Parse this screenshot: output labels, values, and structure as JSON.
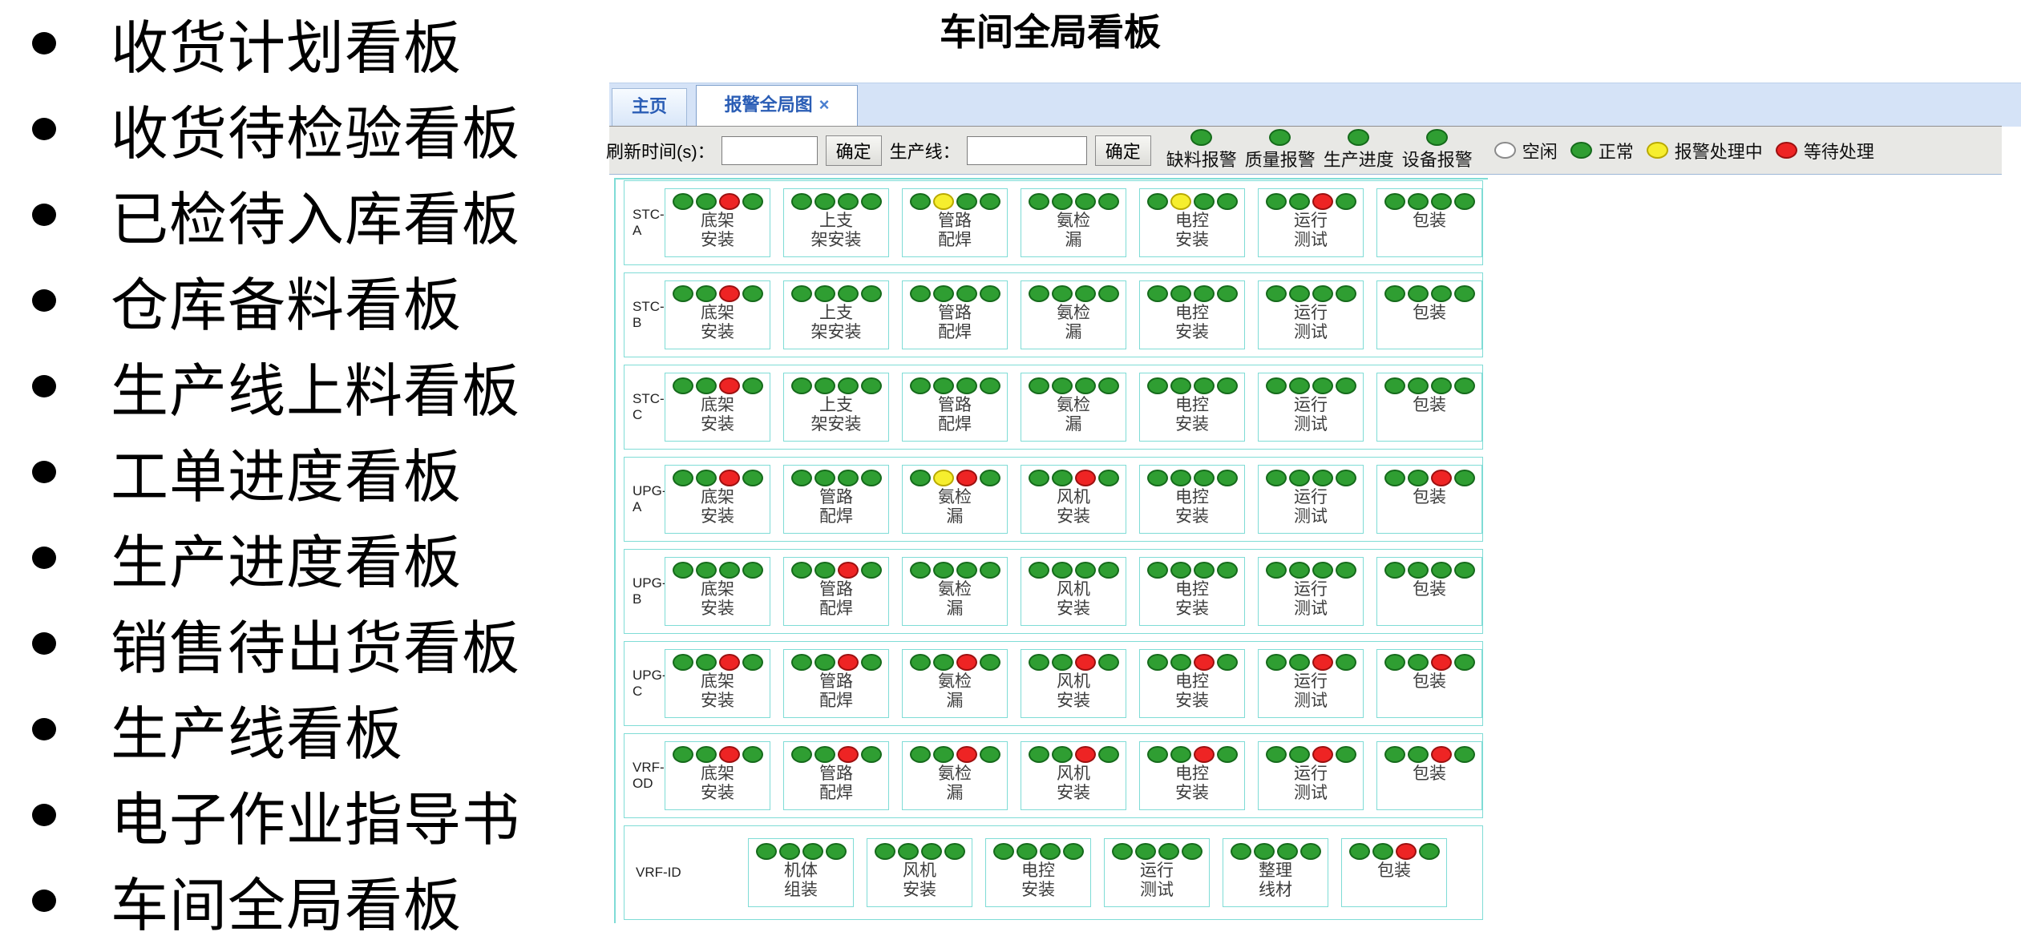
{
  "bullet_list": {
    "items": [
      "收货计划看板",
      "收货待检验看板",
      "已检待入库看板",
      "仓库备料看板",
      "生产线上料看板",
      "工单进度看板",
      "生产进度看板",
      "销售待出货看板",
      "生产线看板",
      "电子作业指导书",
      "车间全局看板"
    ]
  },
  "title": "车间全局看板",
  "tab_bar": {
    "tabs": [
      {
        "label": "主页",
        "active": false,
        "closable": false
      },
      {
        "label": "报警全局图",
        "active": true,
        "closable": true
      }
    ],
    "close_glyph": "×"
  },
  "toolbar": {
    "refresh_label": "刷新时间(s)：",
    "refresh_input_value": "",
    "refresh_confirm_label": "确定",
    "line_label": "生产线：",
    "line_input_value": "",
    "line_confirm_label": "确定",
    "alarm_type_legend": [
      {
        "label": "缺料报警",
        "dot": "normal"
      },
      {
        "label": "质量报警",
        "dot": "normal"
      },
      {
        "label": "生产进度",
        "dot": "normal"
      },
      {
        "label": "设备报警",
        "dot": "normal"
      }
    ],
    "status_legend": [
      {
        "label": "空闲",
        "status": "idle"
      },
      {
        "label": "正常",
        "status": "normal"
      },
      {
        "label": "报警处理中",
        "status": "processing"
      },
      {
        "label": "等待处理",
        "status": "waiting"
      }
    ]
  },
  "status_colors": {
    "idle": {
      "fill": "#ffffff",
      "stroke": "#8a8a8a"
    },
    "normal": {
      "fill": "#2f9e32",
      "stroke": "#156a1b"
    },
    "processing": {
      "fill": "#f6ee2e",
      "stroke": "#b9a900"
    },
    "waiting": {
      "fill": "#ee2424",
      "stroke": "#9c1010"
    }
  },
  "accent_colors": {
    "box_border": "#7fdcd6",
    "tab_text": "#2a5db5",
    "tabbar_bg": "#d5e3f7",
    "toolbar_bg": "#e8e8e5"
  },
  "board": {
    "rows": [
      {
        "label_lines": [
          "STC-",
          "A"
        ],
        "wide_label": false,
        "stations": [
          {
            "name": [
              "底架",
              "安装"
            ],
            "dots": [
              "normal",
              "normal",
              "waiting",
              "normal"
            ]
          },
          {
            "name": [
              "上支",
              "架安装"
            ],
            "dots": [
              "normal",
              "normal",
              "normal",
              "normal"
            ]
          },
          {
            "name": [
              "管路",
              "配焊"
            ],
            "dots": [
              "normal",
              "processing",
              "normal",
              "normal"
            ]
          },
          {
            "name": [
              "氨检",
              "漏"
            ],
            "dots": [
              "normal",
              "normal",
              "normal",
              "normal"
            ]
          },
          {
            "name": [
              "电控",
              "安装"
            ],
            "dots": [
              "normal",
              "processing",
              "normal",
              "normal"
            ]
          },
          {
            "name": [
              "运行",
              "测试"
            ],
            "dots": [
              "normal",
              "normal",
              "waiting",
              "normal"
            ]
          },
          {
            "name": [
              "包装"
            ],
            "dots": [
              "normal",
              "normal",
              "normal",
              "normal"
            ]
          }
        ]
      },
      {
        "label_lines": [
          "STC-",
          "B"
        ],
        "wide_label": false,
        "stations": [
          {
            "name": [
              "底架",
              "安装"
            ],
            "dots": [
              "normal",
              "normal",
              "waiting",
              "normal"
            ]
          },
          {
            "name": [
              "上支",
              "架安装"
            ],
            "dots": [
              "normal",
              "normal",
              "normal",
              "normal"
            ]
          },
          {
            "name": [
              "管路",
              "配焊"
            ],
            "dots": [
              "normal",
              "normal",
              "normal",
              "normal"
            ]
          },
          {
            "name": [
              "氨检",
              "漏"
            ],
            "dots": [
              "normal",
              "normal",
              "normal",
              "normal"
            ]
          },
          {
            "name": [
              "电控",
              "安装"
            ],
            "dots": [
              "normal",
              "normal",
              "normal",
              "normal"
            ]
          },
          {
            "name": [
              "运行",
              "测试"
            ],
            "dots": [
              "normal",
              "normal",
              "normal",
              "normal"
            ]
          },
          {
            "name": [
              "包装"
            ],
            "dots": [
              "normal",
              "normal",
              "normal",
              "normal"
            ]
          }
        ]
      },
      {
        "label_lines": [
          "STC-",
          "C"
        ],
        "wide_label": false,
        "stations": [
          {
            "name": [
              "底架",
              "安装"
            ],
            "dots": [
              "normal",
              "normal",
              "waiting",
              "normal"
            ]
          },
          {
            "name": [
              "上支",
              "架安装"
            ],
            "dots": [
              "normal",
              "normal",
              "normal",
              "normal"
            ]
          },
          {
            "name": [
              "管路",
              "配焊"
            ],
            "dots": [
              "normal",
              "normal",
              "normal",
              "normal"
            ]
          },
          {
            "name": [
              "氨检",
              "漏"
            ],
            "dots": [
              "normal",
              "normal",
              "normal",
              "normal"
            ]
          },
          {
            "name": [
              "电控",
              "安装"
            ],
            "dots": [
              "normal",
              "normal",
              "normal",
              "normal"
            ]
          },
          {
            "name": [
              "运行",
              "测试"
            ],
            "dots": [
              "normal",
              "normal",
              "normal",
              "normal"
            ]
          },
          {
            "name": [
              "包装"
            ],
            "dots": [
              "normal",
              "normal",
              "normal",
              "normal"
            ]
          }
        ]
      },
      {
        "label_lines": [
          "UPG-",
          "A"
        ],
        "wide_label": false,
        "stations": [
          {
            "name": [
              "底架",
              "安装"
            ],
            "dots": [
              "normal",
              "normal",
              "waiting",
              "normal"
            ]
          },
          {
            "name": [
              "管路",
              "配焊"
            ],
            "dots": [
              "normal",
              "normal",
              "normal",
              "normal"
            ]
          },
          {
            "name": [
              "氨检",
              "漏"
            ],
            "dots": [
              "normal",
              "processing",
              "waiting",
              "normal"
            ]
          },
          {
            "name": [
              "风机",
              "安装"
            ],
            "dots": [
              "normal",
              "normal",
              "waiting",
              "normal"
            ]
          },
          {
            "name": [
              "电控",
              "安装"
            ],
            "dots": [
              "normal",
              "normal",
              "normal",
              "normal"
            ]
          },
          {
            "name": [
              "运行",
              "测试"
            ],
            "dots": [
              "normal",
              "normal",
              "normal",
              "normal"
            ]
          },
          {
            "name": [
              "包装"
            ],
            "dots": [
              "normal",
              "normal",
              "waiting",
              "normal"
            ]
          }
        ]
      },
      {
        "label_lines": [
          "UPG-",
          "B"
        ],
        "wide_label": false,
        "stations": [
          {
            "name": [
              "底架",
              "安装"
            ],
            "dots": [
              "normal",
              "normal",
              "normal",
              "normal"
            ]
          },
          {
            "name": [
              "管路",
              "配焊"
            ],
            "dots": [
              "normal",
              "normal",
              "waiting",
              "normal"
            ]
          },
          {
            "name": [
              "氨检",
              "漏"
            ],
            "dots": [
              "normal",
              "normal",
              "normal",
              "normal"
            ]
          },
          {
            "name": [
              "风机",
              "安装"
            ],
            "dots": [
              "normal",
              "normal",
              "normal",
              "normal"
            ]
          },
          {
            "name": [
              "电控",
              "安装"
            ],
            "dots": [
              "normal",
              "normal",
              "normal",
              "normal"
            ]
          },
          {
            "name": [
              "运行",
              "测试"
            ],
            "dots": [
              "normal",
              "normal",
              "normal",
              "normal"
            ]
          },
          {
            "name": [
              "包装"
            ],
            "dots": [
              "normal",
              "normal",
              "normal",
              "normal"
            ]
          }
        ]
      },
      {
        "label_lines": [
          "UPG-",
          "C"
        ],
        "wide_label": false,
        "stations": [
          {
            "name": [
              "底架",
              "安装"
            ],
            "dots": [
              "normal",
              "normal",
              "waiting",
              "normal"
            ]
          },
          {
            "name": [
              "管路",
              "配焊"
            ],
            "dots": [
              "normal",
              "normal",
              "waiting",
              "normal"
            ]
          },
          {
            "name": [
              "氨检",
              "漏"
            ],
            "dots": [
              "normal",
              "normal",
              "waiting",
              "normal"
            ]
          },
          {
            "name": [
              "风机",
              "安装"
            ],
            "dots": [
              "normal",
              "normal",
              "waiting",
              "normal"
            ]
          },
          {
            "name": [
              "电控",
              "安装"
            ],
            "dots": [
              "normal",
              "normal",
              "waiting",
              "normal"
            ]
          },
          {
            "name": [
              "运行",
              "测试"
            ],
            "dots": [
              "normal",
              "normal",
              "waiting",
              "normal"
            ]
          },
          {
            "name": [
              "包装"
            ],
            "dots": [
              "normal",
              "normal",
              "waiting",
              "normal"
            ]
          }
        ]
      },
      {
        "label_lines": [
          "VRF-",
          "OD"
        ],
        "wide_label": false,
        "stations": [
          {
            "name": [
              "底架",
              "安装"
            ],
            "dots": [
              "normal",
              "normal",
              "waiting",
              "normal"
            ]
          },
          {
            "name": [
              "管路",
              "配焊"
            ],
            "dots": [
              "normal",
              "normal",
              "waiting",
              "normal"
            ]
          },
          {
            "name": [
              "氨检",
              "漏"
            ],
            "dots": [
              "normal",
              "normal",
              "waiting",
              "normal"
            ]
          },
          {
            "name": [
              "风机",
              "安装"
            ],
            "dots": [
              "normal",
              "normal",
              "waiting",
              "normal"
            ]
          },
          {
            "name": [
              "电控",
              "安装"
            ],
            "dots": [
              "normal",
              "normal",
              "waiting",
              "normal"
            ]
          },
          {
            "name": [
              "运行",
              "测试"
            ],
            "dots": [
              "normal",
              "normal",
              "waiting",
              "normal"
            ]
          },
          {
            "name": [
              "包装"
            ],
            "dots": [
              "normal",
              "normal",
              "waiting",
              "normal"
            ]
          }
        ]
      },
      {
        "label_lines": [
          "VRF-ID"
        ],
        "wide_label": true,
        "stations": [
          {
            "name": [
              "机体",
              "组装"
            ],
            "dots": [
              "normal",
              "normal",
              "normal",
              "normal"
            ]
          },
          {
            "name": [
              "风机",
              "安装"
            ],
            "dots": [
              "normal",
              "normal",
              "normal",
              "normal"
            ]
          },
          {
            "name": [
              "电控",
              "安装"
            ],
            "dots": [
              "normal",
              "normal",
              "normal",
              "normal"
            ]
          },
          {
            "name": [
              "运行",
              "测试"
            ],
            "dots": [
              "normal",
              "normal",
              "normal",
              "normal"
            ]
          },
          {
            "name": [
              "整理",
              "线材"
            ],
            "dots": [
              "normal",
              "normal",
              "normal",
              "normal"
            ]
          },
          {
            "name": [
              "包装"
            ],
            "dots": [
              "normal",
              "normal",
              "waiting",
              "normal"
            ]
          }
        ]
      }
    ]
  }
}
